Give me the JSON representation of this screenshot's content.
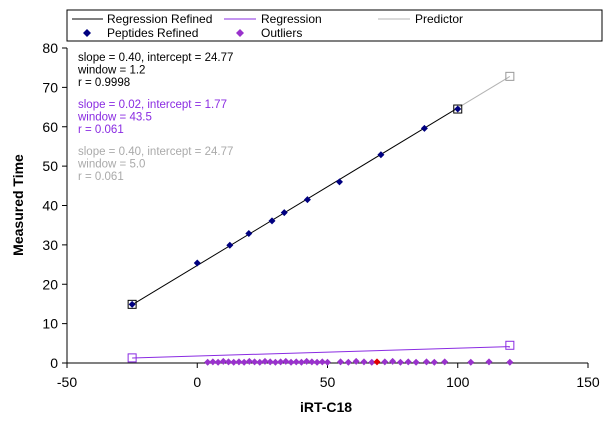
{
  "chart_data": {
    "type": "scatter",
    "xlabel": "iRT-C18",
    "ylabel": "Measured Time",
    "xlim": [
      -50,
      150
    ],
    "ylim": [
      0,
      80
    ],
    "xticks": [
      -50,
      0,
      50,
      100,
      150
    ],
    "yticks": [
      0,
      10,
      20,
      30,
      40,
      50,
      60,
      70,
      80
    ],
    "grid": false,
    "legend": {
      "placement": "top",
      "entries": [
        {
          "name": "Regression Refined",
          "marker": "line",
          "color": "#000000"
        },
        {
          "name": "Regression",
          "marker": "line",
          "color": "#8a2be2"
        },
        {
          "name": "Predictor",
          "marker": "line",
          "color": "#b4b4b4"
        },
        {
          "name": "Peptides Refined",
          "marker": "diamond",
          "color": "#000080"
        },
        {
          "name": "Outliers",
          "marker": "diamond",
          "color": "#9932cc"
        }
      ]
    },
    "series": [
      {
        "name": "Regression Refined",
        "kind": "line",
        "color": "#000000",
        "x": [
          -25,
          100
        ],
        "y": [
          14.77,
          64.77
        ]
      },
      {
        "name": "Regression",
        "kind": "line",
        "color": "#8a2be2",
        "x": [
          -25,
          120
        ],
        "y": [
          1.27,
          4.17
        ]
      },
      {
        "name": "Predictor",
        "kind": "line",
        "color": "#b4b4b4",
        "x": [
          100,
          120
        ],
        "y": [
          64.77,
          72.77
        ]
      },
      {
        "name": "Peptides Refined",
        "kind": "scatter",
        "color": "#000080",
        "x": [
          -25,
          0,
          12.5,
          19.8,
          28.7,
          33.4,
          42.3,
          54.6,
          70.5,
          87.2,
          100
        ],
        "y": [
          14.9,
          25.4,
          29.9,
          32.9,
          36.1,
          38.2,
          41.5,
          46.0,
          52.9,
          59.6,
          64.5
        ]
      },
      {
        "name": "Outliers",
        "kind": "scatter",
        "color": "#9932cc",
        "x": [
          4,
          6,
          8,
          10,
          12,
          14,
          16,
          18,
          20,
          22,
          24,
          26,
          28,
          30,
          32,
          34,
          36,
          38,
          40,
          42,
          44,
          46,
          48,
          50,
          55,
          58,
          61,
          64,
          67,
          72,
          75,
          78,
          81,
          84,
          88,
          91,
          95,
          105,
          112,
          120
        ],
        "y": [
          0.2,
          0.3,
          0.2,
          0.4,
          0.3,
          0.2,
          0.3,
          0.2,
          0.4,
          0.3,
          0.2,
          0.4,
          0.3,
          0.2,
          0.3,
          0.4,
          0.2,
          0.3,
          0.2,
          0.4,
          0.3,
          0.2,
          0.3,
          0.2,
          0.3,
          0.2,
          0.4,
          0.3,
          0.2,
          0.3,
          0.4,
          0.2,
          0.3,
          0.2,
          0.3,
          0.2,
          0.3,
          0.2,
          0.3,
          0.2
        ]
      }
    ],
    "boxed_points": [
      {
        "x": -25,
        "y": 14.9,
        "color": "#000000"
      },
      {
        "x": 100,
        "y": 64.5,
        "color": "#000000"
      },
      {
        "x": 120,
        "y": 72.8,
        "color": "#999999"
      },
      {
        "x": -25,
        "y": 1.3,
        "color": "#8a2be2"
      },
      {
        "x": 120,
        "y": 4.5,
        "color": "#8a2be2"
      }
    ],
    "highlight_point": {
      "x": 69,
      "y": 0.3,
      "color": "#e00000"
    },
    "annotations": [
      {
        "color": "#000000",
        "lines": [
          "slope = 0.40, intercept = 24.77",
          "window = 1.2",
          "r = 0.9998"
        ]
      },
      {
        "color": "#8a2be2",
        "lines": [
          "slope = 0.02, intercept = 1.77",
          "window = 43.5",
          "r = 0.061"
        ]
      },
      {
        "color": "#aaaaaa",
        "lines": [
          "slope = 0.40, intercept = 24.77",
          "window = 5.0",
          "r = 0.061"
        ]
      }
    ]
  }
}
